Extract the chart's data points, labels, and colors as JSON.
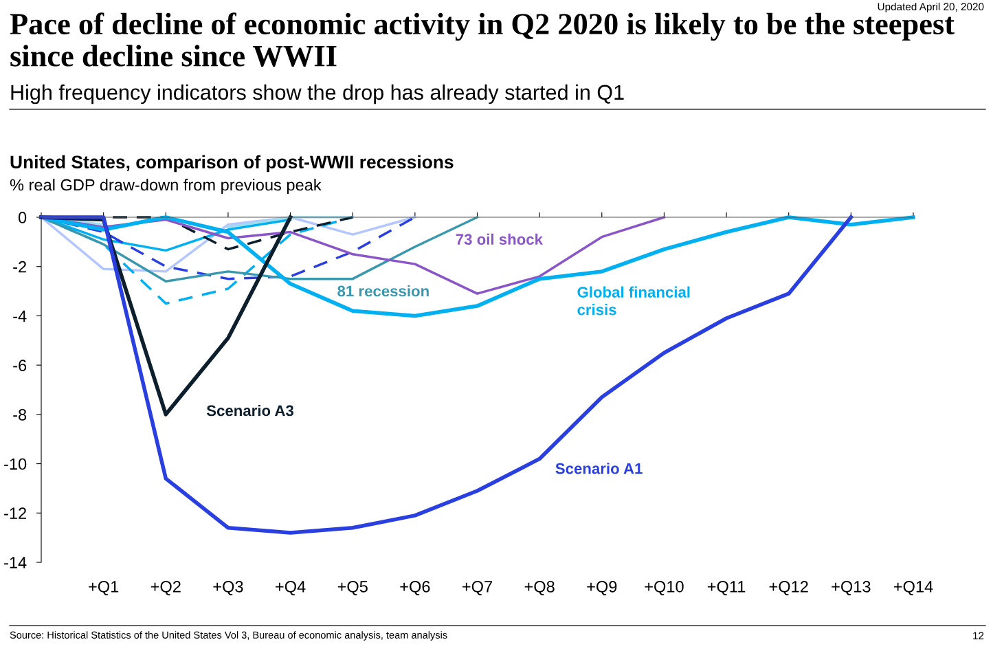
{
  "chart_data": {
    "type": "line",
    "title": "Pace of decline of economic activity in Q2 2020 is likely to be the steepest since decline since WWII",
    "subtitle": "High frequency indicators show the drop has already started in Q1",
    "ylabel": "% real GDP draw-down from previous peak",
    "annotations": [
      "Updated April 20, 2020",
      "United States, comparison of post-WWII recessions",
      "Source: Historical Statistics of the United States Vol 3, Bureau of economic analysis, team analysis",
      "12"
    ],
    "categories": [
      null,
      "+Q1",
      "+Q2",
      "+Q3",
      "+Q4",
      "+Q5",
      "+Q6",
      "+Q7",
      "+Q8",
      "+Q9",
      "+Q10",
      "+Q11",
      "+Q12",
      "+Q13",
      "+Q14"
    ],
    "ylim": [
      -14,
      0
    ],
    "yticks": [
      0,
      -2,
      -4,
      -6,
      -8,
      -10,
      -12,
      -14
    ],
    "grid": false,
    "legend": false,
    "marker": "none",
    "series": [
      {
        "color": "#b3c6ff",
        "values": [
          0,
          -2.1,
          -2.2,
          -0.3,
          0,
          -0.7,
          0,
          null,
          null,
          null,
          null,
          null,
          null,
          null,
          null
        ]
      },
      {
        "color": "#9fdcec",
        "values": [
          0,
          -0.3,
          null,
          -0.4,
          0,
          0,
          null,
          null,
          null,
          null,
          null,
          null,
          null,
          null,
          null
        ]
      },
      {
        "color": "#00b0f0",
        "values": [
          0,
          -0.9,
          -1.35,
          -0.5,
          -0.1,
          null,
          null,
          null,
          null,
          null,
          null,
          null,
          null,
          null,
          null
        ]
      },
      {
        "color": "#00b0f0",
        "line_style": "dashed",
        "values": [
          0,
          -1.1,
          -3.5,
          -2.9,
          -0.7,
          0,
          null,
          null,
          null,
          null,
          null,
          null,
          null,
          null,
          null
        ]
      },
      {
        "color": "#2a3fe0",
        "line_style": "dashed",
        "values": [
          0,
          -0.6,
          -2.0,
          -2.5,
          -2.4,
          -1.4,
          0,
          null,
          null,
          null,
          null,
          null,
          null,
          null,
          null
        ]
      },
      {
        "color": "#0d1f2d",
        "line_style": "dashed",
        "values": [
          0,
          0,
          0,
          -1.3,
          -0.6,
          0,
          null,
          null,
          null,
          null,
          null,
          null,
          null,
          null,
          null
        ]
      },
      {
        "name": "81 recession",
        "color": "#3a98ae",
        "values": [
          0,
          -1.1,
          -2.6,
          -2.2,
          -2.5,
          -2.5,
          -1.2,
          0,
          null,
          null,
          null,
          null,
          null,
          null,
          null
        ]
      },
      {
        "name": "73 oil shock",
        "color": "#8a55c8",
        "values": [
          0,
          -0.4,
          -0.1,
          -0.85,
          -0.6,
          -1.5,
          -1.9,
          -3.1,
          -2.4,
          -0.8,
          0,
          null,
          null,
          null,
          null
        ]
      },
      {
        "name": "Global financial crisis",
        "color": "#00b0f0",
        "values": [
          0,
          -0.5,
          0,
          -0.6,
          -2.7,
          -3.8,
          -4.0,
          -3.6,
          -2.5,
          -2.2,
          -1.3,
          -0.6,
          0,
          -0.3,
          0
        ]
      },
      {
        "name": "Scenario A3",
        "color": "#0d1f2d",
        "values": [
          0,
          -0.1,
          -8.0,
          -4.9,
          0,
          null,
          null,
          null,
          null,
          null,
          null,
          null,
          null,
          null,
          null
        ]
      },
      {
        "name": "Scenario A1",
        "color": "#2a3fe0",
        "values": [
          0,
          0,
          -10.6,
          -12.6,
          -12.8,
          -12.6,
          -12.1,
          -11.1,
          -9.8,
          -7.3,
          -5.5,
          -4.1,
          -3.1,
          0,
          null
        ]
      }
    ]
  }
}
